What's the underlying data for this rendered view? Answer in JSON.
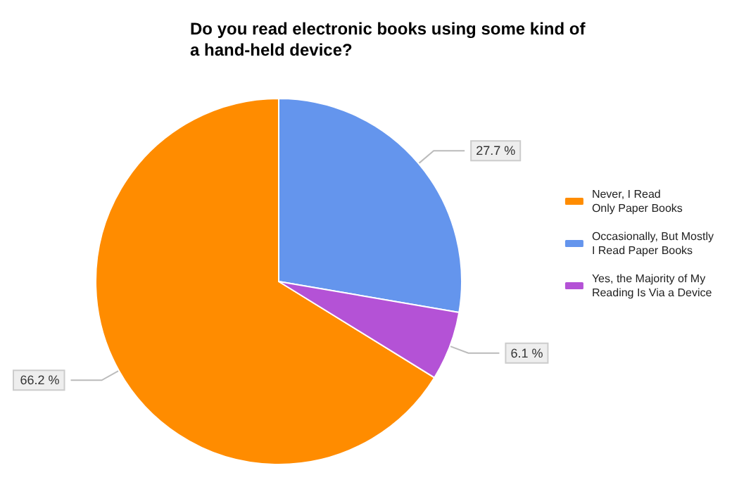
{
  "chart_data": {
    "type": "pie",
    "title": "Do you read electronic books using some kind of a hand-held device?",
    "categories": [
      "Never, I Read\nOnly Paper Books",
      "Occasionally, But Mostly\nI Read Paper Books",
      "Yes, the Majority of My\nReading Is Via a Device"
    ],
    "values": [
      66.2,
      27.7,
      6.1
    ],
    "colors": [
      "#ff8c00",
      "#6495ed",
      "#b452d6"
    ],
    "value_labels": [
      "66.2 %",
      "27.7 %",
      "6.1 %"
    ],
    "legend": "right"
  }
}
